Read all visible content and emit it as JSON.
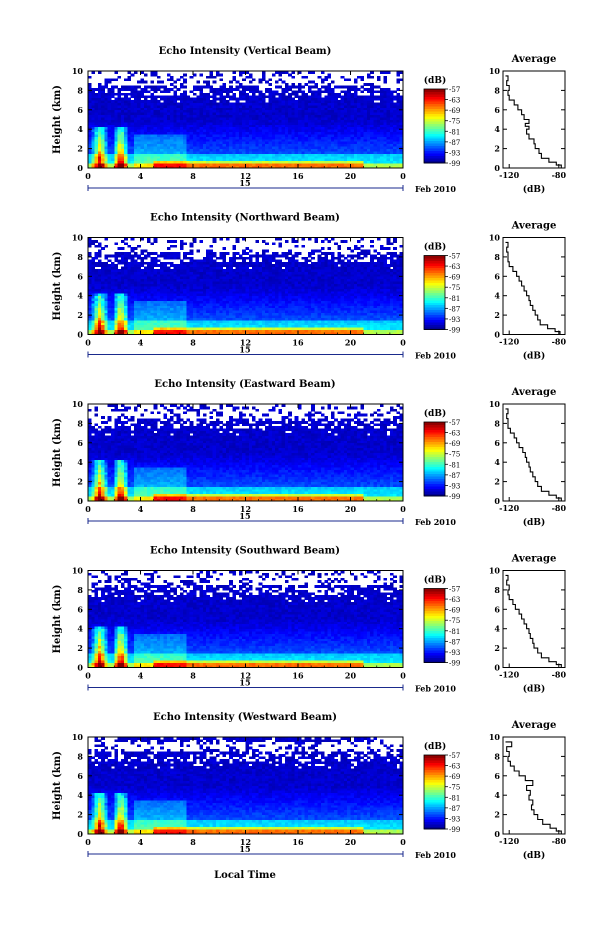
{
  "figure": {
    "xlabel": "Local Time",
    "date_prefix": "15",
    "date_suffix": "Feb 2010",
    "colorbar_unit": "(dB)",
    "colorbar_ticks": [
      "-57",
      "-63",
      "-69",
      "-75",
      "-81",
      "-87",
      "-93",
      "-99"
    ],
    "avg_title": "Average",
    "avg_xlabel": "(dB)",
    "ylabel": "Height (km)"
  },
  "chart_data": [
    {
      "type": "heatmap",
      "title": "Echo Intensity (Vertical Beam)",
      "ylabel": "Height (km)",
      "xlabel": "",
      "xlim": [
        0,
        24
      ],
      "ylim": [
        0,
        10
      ],
      "xticks": [
        "0",
        "4",
        "8",
        "12",
        "16",
        "20",
        "0"
      ],
      "yticks": [
        "0",
        "2",
        "4",
        "6",
        "8",
        "10"
      ],
      "colorbar": {
        "label": "(dB)",
        "range": [
          -99,
          -57
        ]
      },
      "average_profile": {
        "title": "Average",
        "xlabel": "(dB)",
        "xticks": [
          "-120",
          "-80"
        ],
        "xlim": [
          -125,
          -75
        ],
        "ylim": [
          0,
          10
        ],
        "values": [
          [
            -78,
            0
          ],
          [
            -82,
            0.3
          ],
          [
            -88,
            0.6
          ],
          [
            -94,
            1.0
          ],
          [
            -96,
            1.5
          ],
          [
            -99,
            2.0
          ],
          [
            -100,
            2.5
          ],
          [
            -104,
            3.0
          ],
          [
            -106,
            3.5
          ],
          [
            -104,
            4.0
          ],
          [
            -107,
            4.3
          ],
          [
            -104,
            4.6
          ],
          [
            -108,
            5.0
          ],
          [
            -110,
            5.5
          ],
          [
            -113,
            6.0
          ],
          [
            -116,
            6.5
          ],
          [
            -120,
            7.0
          ],
          [
            -121,
            7.5
          ],
          [
            -120,
            8.0
          ],
          [
            -122,
            8.5
          ],
          [
            -121,
            9.0
          ],
          [
            -123,
            9.5
          ]
        ]
      }
    },
    {
      "type": "heatmap",
      "title": "Echo Intensity (Northward Beam)",
      "ylabel": "Height (km)",
      "xlabel": "",
      "xlim": [
        0,
        24
      ],
      "ylim": [
        0,
        10
      ],
      "xticks": [
        "0",
        "4",
        "8",
        "12",
        "16",
        "20",
        "0"
      ],
      "yticks": [
        "0",
        "2",
        "4",
        "6",
        "8",
        "10"
      ],
      "colorbar": {
        "label": "(dB)",
        "range": [
          -99,
          -57
        ]
      },
      "average_profile": {
        "title": "Average",
        "xlabel": "(dB)",
        "xticks": [
          "-120",
          "-80"
        ],
        "xlim": [
          -125,
          -75
        ],
        "ylim": [
          0,
          10
        ],
        "values": [
          [
            -79,
            0
          ],
          [
            -83,
            0.3
          ],
          [
            -89,
            0.6
          ],
          [
            -95,
            1.0
          ],
          [
            -97,
            1.5
          ],
          [
            -99,
            2.0
          ],
          [
            -101,
            2.5
          ],
          [
            -103,
            3.0
          ],
          [
            -104,
            3.5
          ],
          [
            -106,
            4.0
          ],
          [
            -108,
            4.5
          ],
          [
            -110,
            5.0
          ],
          [
            -112,
            5.5
          ],
          [
            -114,
            6.0
          ],
          [
            -117,
            6.5
          ],
          [
            -120,
            7.0
          ],
          [
            -121,
            7.5
          ],
          [
            -121,
            8.0
          ],
          [
            -122,
            8.5
          ],
          [
            -121,
            9.0
          ],
          [
            -123,
            9.5
          ]
        ]
      }
    },
    {
      "type": "heatmap",
      "title": "Echo Intensity (Eastward Beam)",
      "ylabel": "Height (km)",
      "xlabel": "",
      "xlim": [
        0,
        24
      ],
      "ylim": [
        0,
        10
      ],
      "xticks": [
        "0",
        "4",
        "8",
        "12",
        "16",
        "20",
        "0"
      ],
      "yticks": [
        "0",
        "2",
        "4",
        "6",
        "8",
        "10"
      ],
      "colorbar": {
        "label": "(dB)",
        "range": [
          -99,
          -57
        ]
      },
      "average_profile": {
        "title": "Average",
        "xlabel": "(dB)",
        "xticks": [
          "-120",
          "-80"
        ],
        "xlim": [
          -125,
          -75
        ],
        "ylim": [
          0,
          10
        ],
        "values": [
          [
            -78,
            0
          ],
          [
            -82,
            0.3
          ],
          [
            -88,
            0.6
          ],
          [
            -94,
            1.0
          ],
          [
            -97,
            1.5
          ],
          [
            -99,
            2.0
          ],
          [
            -101,
            2.5
          ],
          [
            -103,
            3.0
          ],
          [
            -104,
            3.5
          ],
          [
            -106,
            4.0
          ],
          [
            -107,
            4.5
          ],
          [
            -109,
            5.0
          ],
          [
            -112,
            5.5
          ],
          [
            -114,
            6.0
          ],
          [
            -116,
            6.5
          ],
          [
            -119,
            7.0
          ],
          [
            -121,
            7.5
          ],
          [
            -121,
            8.0
          ],
          [
            -122,
            8.5
          ],
          [
            -121,
            9.0
          ],
          [
            -123,
            9.5
          ]
        ]
      }
    },
    {
      "type": "heatmap",
      "title": "Echo Intensity (Southward Beam)",
      "ylabel": "Height (km)",
      "xlabel": "",
      "xlim": [
        0,
        24
      ],
      "ylim": [
        0,
        10
      ],
      "xticks": [
        "0",
        "4",
        "8",
        "12",
        "16",
        "20",
        "0"
      ],
      "yticks": [
        "0",
        "2",
        "4",
        "6",
        "8",
        "10"
      ],
      "colorbar": {
        "label": "(dB)",
        "range": [
          -99,
          -57
        ]
      },
      "average_profile": {
        "title": "Average",
        "xlabel": "(dB)",
        "xticks": [
          "-120",
          "-80"
        ],
        "xlim": [
          -125,
          -75
        ],
        "ylim": [
          0,
          10
        ],
        "values": [
          [
            -78,
            0
          ],
          [
            -82,
            0.3
          ],
          [
            -88,
            0.6
          ],
          [
            -94,
            1.0
          ],
          [
            -97,
            1.5
          ],
          [
            -100,
            2.0
          ],
          [
            -101,
            2.5
          ],
          [
            -103,
            3.0
          ],
          [
            -104,
            3.5
          ],
          [
            -106,
            4.0
          ],
          [
            -108,
            4.5
          ],
          [
            -110,
            5.0
          ],
          [
            -112,
            5.5
          ],
          [
            -115,
            6.0
          ],
          [
            -117,
            6.5
          ],
          [
            -120,
            7.0
          ],
          [
            -121,
            7.5
          ],
          [
            -120,
            8.0
          ],
          [
            -122,
            8.5
          ],
          [
            -121,
            9.0
          ],
          [
            -123,
            9.5
          ]
        ]
      }
    },
    {
      "type": "heatmap",
      "title": "Echo Intensity (Westward Beam)",
      "ylabel": "Height (km)",
      "xlabel": "Local Time",
      "xlim": [
        0,
        24
      ],
      "ylim": [
        0,
        10
      ],
      "xticks": [
        "0",
        "4",
        "8",
        "12",
        "16",
        "20",
        "0"
      ],
      "yticks": [
        "0",
        "2",
        "4",
        "6",
        "8",
        "10"
      ],
      "colorbar": {
        "label": "(dB)",
        "range": [
          -99,
          -57
        ]
      },
      "average_profile": {
        "title": "Average",
        "xlabel": "(dB)",
        "xticks": [
          "-120",
          "-80"
        ],
        "xlim": [
          -125,
          -75
        ],
        "ylim": [
          0,
          10
        ],
        "values": [
          [
            -78,
            0
          ],
          [
            -82,
            0.3
          ],
          [
            -87,
            0.6
          ],
          [
            -93,
            1.0
          ],
          [
            -97,
            1.5
          ],
          [
            -100,
            2.0
          ],
          [
            -102,
            2.5
          ],
          [
            -101,
            3.0
          ],
          [
            -104,
            3.5
          ],
          [
            -103,
            4.0
          ],
          [
            -106,
            4.5
          ],
          [
            -101,
            5.0
          ],
          [
            -107,
            5.5
          ],
          [
            -112,
            6.0
          ],
          [
            -116,
            6.5
          ],
          [
            -119,
            7.0
          ],
          [
            -121,
            7.5
          ],
          [
            -120,
            8.0
          ],
          [
            -122,
            8.5
          ],
          [
            -118,
            9.0
          ],
          [
            -123,
            9.5
          ]
        ]
      }
    }
  ]
}
